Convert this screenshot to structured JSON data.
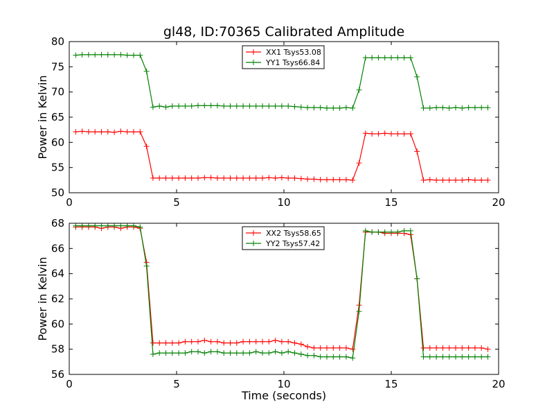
{
  "figure": {
    "title": "gl48, ID:70365 Calibrated Amplitude"
  },
  "chart_data": [
    {
      "type": "line",
      "ylabel": "Power in Kelvin",
      "xlabel": "",
      "xlim": [
        0,
        20
      ],
      "ylim": [
        50,
        80
      ],
      "xticks": [
        0,
        5,
        10,
        15,
        20
      ],
      "yticks": [
        50,
        55,
        60,
        65,
        70,
        75,
        80
      ],
      "grid": false,
      "legend_position": "top-center",
      "series": [
        {
          "name": "XX1 Tsys53.08",
          "color": "#ff0000",
          "x": [
            0.3,
            0.6,
            0.9,
            1.2,
            1.5,
            1.8,
            2.1,
            2.4,
            2.7,
            3.0,
            3.3,
            3.6,
            3.9,
            4.2,
            4.5,
            4.8,
            5.1,
            5.4,
            5.7,
            6.0,
            6.3,
            6.6,
            6.9,
            7.2,
            7.5,
            7.8,
            8.1,
            8.4,
            8.7,
            9.0,
            9.3,
            9.6,
            9.9,
            10.2,
            10.5,
            10.8,
            11.1,
            11.4,
            11.7,
            12.0,
            12.3,
            12.6,
            12.9,
            13.2,
            13.5,
            13.8,
            14.1,
            14.4,
            14.7,
            15.0,
            15.3,
            15.6,
            15.9,
            16.2,
            16.5,
            16.8,
            17.1,
            17.4,
            17.7,
            18.0,
            18.3,
            18.6,
            18.9,
            19.2,
            19.5
          ],
          "y": [
            62.1,
            62.2,
            62.1,
            62.1,
            62.1,
            62.1,
            62.0,
            62.2,
            62.1,
            62.1,
            62.1,
            59.2,
            52.9,
            52.9,
            52.9,
            52.9,
            52.9,
            52.9,
            52.9,
            52.9,
            53.0,
            53.0,
            52.9,
            52.9,
            52.9,
            52.9,
            52.9,
            52.9,
            52.9,
            52.9,
            53.0,
            52.9,
            53.0,
            52.9,
            52.9,
            52.8,
            52.7,
            52.7,
            52.6,
            52.6,
            52.6,
            52.6,
            52.6,
            52.5,
            55.9,
            61.8,
            61.7,
            61.7,
            61.8,
            61.7,
            61.7,
            61.7,
            61.7,
            58.2,
            52.5,
            52.6,
            52.5,
            52.5,
            52.5,
            52.5,
            52.5,
            52.6,
            52.5,
            52.5,
            52.5
          ]
        },
        {
          "name": "YY1 Tsys66.84",
          "color": "#008000",
          "x": [
            0.3,
            0.6,
            0.9,
            1.2,
            1.5,
            1.8,
            2.1,
            2.4,
            2.7,
            3.0,
            3.3,
            3.6,
            3.9,
            4.2,
            4.5,
            4.8,
            5.1,
            5.4,
            5.7,
            6.0,
            6.3,
            6.6,
            6.9,
            7.2,
            7.5,
            7.8,
            8.1,
            8.4,
            8.7,
            9.0,
            9.3,
            9.6,
            9.9,
            10.2,
            10.5,
            10.8,
            11.1,
            11.4,
            11.7,
            12.0,
            12.3,
            12.6,
            12.9,
            13.2,
            13.5,
            13.8,
            14.1,
            14.4,
            14.7,
            15.0,
            15.3,
            15.6,
            15.9,
            16.2,
            16.5,
            16.8,
            17.1,
            17.4,
            17.7,
            18.0,
            18.3,
            18.6,
            18.9,
            19.2,
            19.5
          ],
          "y": [
            77.3,
            77.4,
            77.4,
            77.4,
            77.4,
            77.4,
            77.4,
            77.4,
            77.3,
            77.3,
            77.3,
            74.1,
            67.0,
            67.2,
            67.0,
            67.2,
            67.2,
            67.2,
            67.2,
            67.3,
            67.3,
            67.3,
            67.3,
            67.2,
            67.2,
            67.2,
            67.2,
            67.2,
            67.2,
            67.2,
            67.2,
            67.2,
            67.2,
            67.2,
            67.1,
            67.0,
            66.9,
            66.9,
            66.9,
            66.8,
            66.8,
            66.8,
            66.9,
            66.8,
            70.4,
            76.8,
            76.8,
            76.8,
            76.8,
            76.8,
            76.8,
            76.8,
            76.8,
            73.0,
            66.8,
            66.8,
            66.9,
            66.9,
            66.8,
            66.9,
            66.8,
            66.9,
            66.9,
            66.9,
            66.9
          ]
        }
      ]
    },
    {
      "type": "line",
      "ylabel": "Power in Kelvin",
      "xlabel": "Time (seconds)",
      "xlim": [
        0,
        20
      ],
      "ylim": [
        56,
        68
      ],
      "xticks": [
        0,
        5,
        10,
        15,
        20
      ],
      "yticks": [
        56,
        58,
        60,
        62,
        64,
        66,
        68
      ],
      "grid": false,
      "legend_position": "top-center",
      "series": [
        {
          "name": "XX2 Tsys58.65",
          "color": "#ff0000",
          "x": [
            0.3,
            0.6,
            0.9,
            1.2,
            1.5,
            1.8,
            2.1,
            2.4,
            2.7,
            3.0,
            3.3,
            3.6,
            3.9,
            4.2,
            4.5,
            4.8,
            5.1,
            5.4,
            5.7,
            6.0,
            6.3,
            6.6,
            6.9,
            7.2,
            7.5,
            7.8,
            8.1,
            8.4,
            8.7,
            9.0,
            9.3,
            9.6,
            9.9,
            10.2,
            10.5,
            10.8,
            11.1,
            11.4,
            11.7,
            12.0,
            12.3,
            12.6,
            12.9,
            13.2,
            13.5,
            13.8,
            14.1,
            14.4,
            14.7,
            15.0,
            15.3,
            15.6,
            15.9,
            16.2,
            16.5,
            16.8,
            17.1,
            17.4,
            17.7,
            18.0,
            18.3,
            18.6,
            18.9,
            19.2,
            19.5
          ],
          "y": [
            67.7,
            67.7,
            67.7,
            67.7,
            67.6,
            67.7,
            67.7,
            67.6,
            67.7,
            67.7,
            67.6,
            64.9,
            58.5,
            58.5,
            58.5,
            58.5,
            58.5,
            58.6,
            58.6,
            58.6,
            58.7,
            58.6,
            58.6,
            58.5,
            58.5,
            58.5,
            58.6,
            58.6,
            58.6,
            58.6,
            58.6,
            58.7,
            58.6,
            58.6,
            58.5,
            58.4,
            58.2,
            58.1,
            58.1,
            58.1,
            58.1,
            58.1,
            58.1,
            58.0,
            61.5,
            67.3,
            67.3,
            67.3,
            67.2,
            67.2,
            67.2,
            67.2,
            67.1,
            63.6,
            58.1,
            58.1,
            58.1,
            58.1,
            58.1,
            58.1,
            58.1,
            58.1,
            58.1,
            58.1,
            58.0
          ]
        },
        {
          "name": "YY2 Tsys57.42",
          "color": "#008000",
          "x": [
            0.3,
            0.6,
            0.9,
            1.2,
            1.5,
            1.8,
            2.1,
            2.4,
            2.7,
            3.0,
            3.3,
            3.6,
            3.9,
            4.2,
            4.5,
            4.8,
            5.1,
            5.4,
            5.7,
            6.0,
            6.3,
            6.6,
            6.9,
            7.2,
            7.5,
            7.8,
            8.1,
            8.4,
            8.7,
            9.0,
            9.3,
            9.6,
            9.9,
            10.2,
            10.5,
            10.8,
            11.1,
            11.4,
            11.7,
            12.0,
            12.3,
            12.6,
            12.9,
            13.2,
            13.5,
            13.8,
            14.1,
            14.4,
            14.7,
            15.0,
            15.3,
            15.6,
            15.9,
            16.2,
            16.5,
            16.8,
            17.1,
            17.4,
            17.7,
            18.0,
            18.3,
            18.6,
            18.9,
            19.2,
            19.5
          ],
          "y": [
            67.8,
            67.8,
            67.8,
            67.8,
            67.8,
            67.8,
            67.8,
            67.8,
            67.8,
            67.8,
            67.7,
            64.6,
            57.6,
            57.7,
            57.7,
            57.7,
            57.7,
            57.7,
            57.8,
            57.8,
            57.7,
            57.8,
            57.8,
            57.7,
            57.7,
            57.7,
            57.7,
            57.7,
            57.8,
            57.7,
            57.7,
            57.8,
            57.7,
            57.8,
            57.7,
            57.6,
            57.5,
            57.5,
            57.4,
            57.4,
            57.4,
            57.4,
            57.4,
            57.3,
            61.0,
            67.4,
            67.3,
            67.3,
            67.3,
            67.3,
            67.3,
            67.4,
            67.4,
            63.6,
            57.4,
            57.4,
            57.4,
            57.4,
            57.4,
            57.4,
            57.4,
            57.4,
            57.4,
            57.4,
            57.4
          ]
        }
      ]
    }
  ]
}
